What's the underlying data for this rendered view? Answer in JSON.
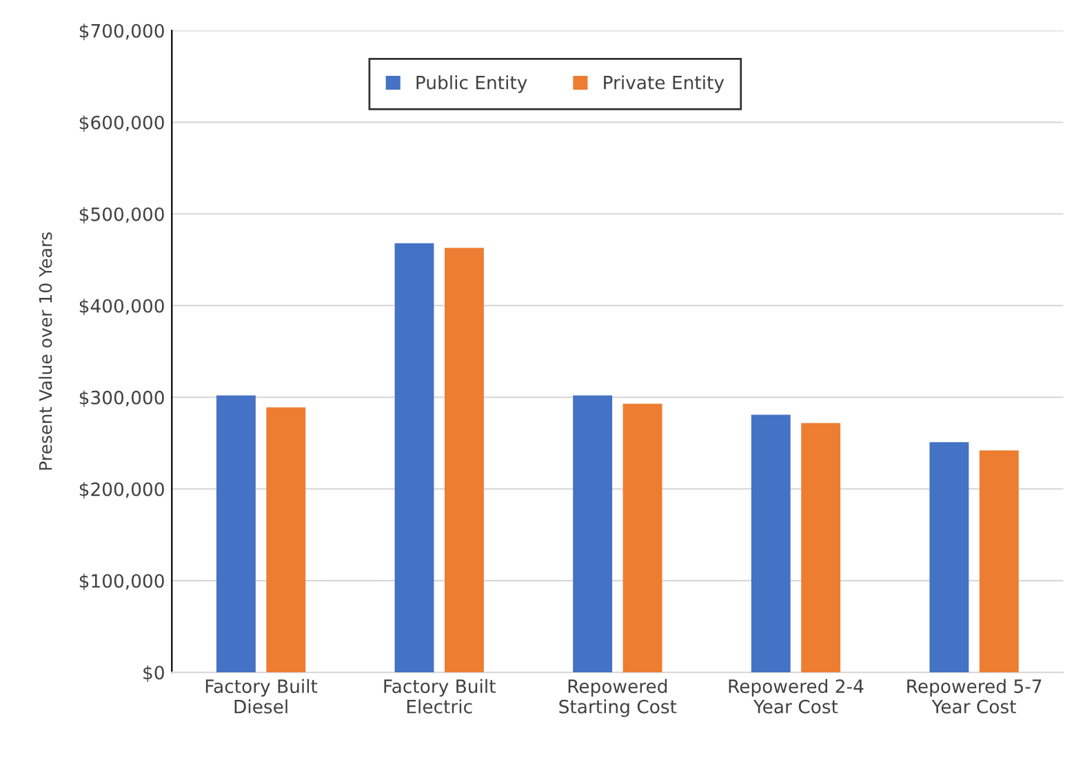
{
  "chart_data": {
    "type": "bar",
    "ylabel": "Present Value over 10 Years",
    "categories": [
      "Factory Built\nDiesel",
      "Factory Built\nElectric",
      "Repowered\nStarting Cost",
      "Repowered 2-4\nYear Cost",
      "Repowered 5-7\nYear Cost"
    ],
    "series": [
      {
        "name": "Public Entity",
        "color": "#4472c4",
        "values": [
          302000,
          468000,
          302000,
          281000,
          251000
        ]
      },
      {
        "name": "Private Entity",
        "color": "#ed7d31",
        "values": [
          289000,
          463000,
          293000,
          272000,
          242000
        ]
      }
    ],
    "ylim": [
      0,
      700000
    ],
    "yticks": [
      {
        "value": 0,
        "label": "$0"
      },
      {
        "value": 100000,
        "label": "$100,000"
      },
      {
        "value": 200000,
        "label": "$200,000"
      },
      {
        "value": 300000,
        "label": "$300,000"
      },
      {
        "value": 400000,
        "label": "$400,000"
      },
      {
        "value": 500000,
        "label": "$500,000"
      },
      {
        "value": 600000,
        "label": "$600,000"
      },
      {
        "value": 700000,
        "label": "$700,000"
      }
    ],
    "grid": "y",
    "legend": "top"
  }
}
